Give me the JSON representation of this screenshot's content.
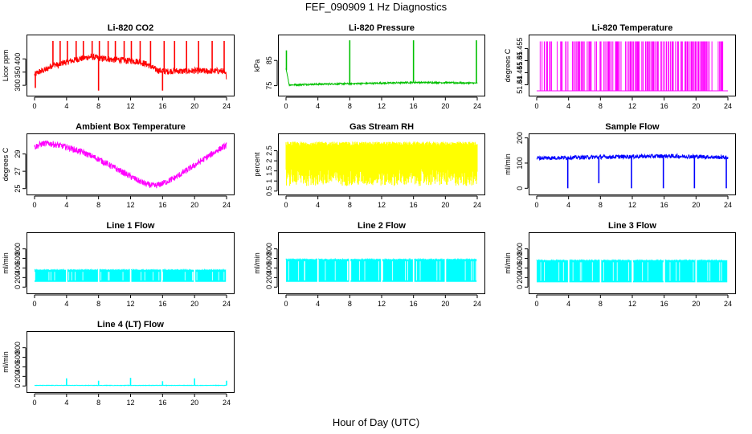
{
  "page": {
    "title": "FEF_090909  1 Hz Diagnostics",
    "xlabel": "Hour of Day (UTC)"
  },
  "chart_data": [
    {
      "type": "line",
      "title": "Li-820 CO2",
      "ylabel": "Licor ppm",
      "color": "#ff0000",
      "xlim": [
        0,
        24
      ],
      "ylim": [
        270,
        480
      ],
      "xticks": [
        0,
        4,
        8,
        12,
        16,
        20,
        24
      ],
      "yticks": [
        300,
        350,
        400
      ],
      "x": [
        0,
        0.5,
        1,
        1.5,
        2,
        2.5,
        3,
        3.5,
        4,
        4.5,
        5,
        5.5,
        6,
        6.5,
        7,
        7.5,
        8,
        8.5,
        9,
        9.5,
        10,
        10.5,
        11,
        11.5,
        12,
        12.5,
        13,
        13.5,
        14,
        14.5,
        15,
        15.5,
        16,
        16.5,
        17,
        17.5,
        18,
        18.5,
        19,
        19.5,
        20,
        20.5,
        21,
        21.5,
        22,
        22.5,
        23,
        23.5,
        24
      ],
      "y": [
        340,
        350,
        355,
        360,
        372,
        380,
        375,
        385,
        388,
        392,
        395,
        400,
        402,
        405,
        408,
        406,
        404,
        400,
        402,
        398,
        396,
        398,
        395,
        392,
        394,
        392,
        390,
        385,
        380,
        372,
        362,
        356,
        354,
        352,
        354,
        355,
        354,
        353,
        354,
        354,
        355,
        354,
        354,
        353,
        354,
        354,
        354,
        354,
        335
      ],
      "band": 12,
      "spikes": [
        {
          "x": 0.1,
          "y": 290
        },
        {
          "x": 2.3,
          "y": 468
        },
        {
          "x": 3.2,
          "y": 468
        },
        {
          "x": 4.1,
          "y": 468
        },
        {
          "x": 5.2,
          "y": 468
        },
        {
          "x": 6.1,
          "y": 468
        },
        {
          "x": 7.2,
          "y": 468
        },
        {
          "x": 8.0,
          "y": 280
        },
        {
          "x": 8.1,
          "y": 468
        },
        {
          "x": 9.2,
          "y": 468
        },
        {
          "x": 10.1,
          "y": 468
        },
        {
          "x": 11.2,
          "y": 468
        },
        {
          "x": 12.1,
          "y": 468
        },
        {
          "x": 13.2,
          "y": 468
        },
        {
          "x": 14.5,
          "y": 468
        },
        {
          "x": 16.0,
          "y": 280
        },
        {
          "x": 16.2,
          "y": 468
        },
        {
          "x": 17.5,
          "y": 468
        },
        {
          "x": 19.0,
          "y": 468
        },
        {
          "x": 20.5,
          "y": 468
        },
        {
          "x": 22.2,
          "y": 468
        },
        {
          "x": 23.7,
          "y": 468
        }
      ]
    },
    {
      "type": "line",
      "title": "Li-820 Pressure",
      "ylabel": "kPa",
      "color": "#00c000",
      "xlim": [
        0,
        24
      ],
      "ylim": [
        72,
        94
      ],
      "xticks": [
        0,
        4,
        8,
        12,
        16,
        20,
        24
      ],
      "yticks": [
        75,
        85
      ],
      "x": [
        0,
        0.4,
        4,
        8,
        12,
        16,
        20,
        24
      ],
      "y": [
        82,
        75.3,
        75.6,
        75.8,
        76.0,
        76.3,
        76.2,
        76.0
      ],
      "band": 0.3,
      "spikes": [
        {
          "x": 0.05,
          "y": 89
        },
        {
          "x": 8,
          "y": 93
        },
        {
          "x": 16,
          "y": 93
        },
        {
          "x": 23.9,
          "y": 93
        }
      ]
    },
    {
      "type": "binary",
      "title": "Li-820 Temperature",
      "ylabel": "degrees C",
      "color": "#ff00ff",
      "xlim": [
        0,
        24
      ],
      "ylim": [
        51.4365,
        51.4595
      ],
      "xticks": [
        0,
        4,
        8,
        12,
        16,
        20,
        24
      ],
      "yticks": [
        51.44,
        51.445,
        51.45,
        51.455
      ],
      "low": 51.4375,
      "high": 51.458,
      "density": [
        [
          0.3,
          0.15
        ],
        [
          3.0,
          0.2
        ],
        [
          6.0,
          0.2
        ],
        [
          9.0,
          0.3
        ],
        [
          12.0,
          0.45
        ],
        [
          15.0,
          0.55
        ],
        [
          17.0,
          0.6
        ],
        [
          20.0,
          0.4
        ],
        [
          23.4,
          0.2
        ]
      ]
    },
    {
      "type": "line",
      "title": "Ambient Box Temperature",
      "ylabel": "degrees C",
      "color": "#ff00ff",
      "xlim": [
        0,
        24
      ],
      "ylim": [
        24.6,
        31.0
      ],
      "xticks": [
        0,
        4,
        8,
        12,
        16,
        20,
        24
      ],
      "yticks": [
        25,
        27,
        29
      ],
      "x": [
        0,
        1,
        2,
        3,
        4,
        5,
        6,
        7,
        8,
        9,
        10,
        11,
        12,
        13,
        14,
        15,
        16,
        17,
        18,
        19,
        20,
        21,
        22,
        23,
        24
      ],
      "y": [
        29.8,
        30.2,
        30.2,
        30.0,
        29.8,
        29.5,
        29.2,
        28.8,
        28.4,
        27.9,
        27.4,
        26.9,
        26.4,
        25.9,
        25.5,
        25.3,
        25.6,
        26.0,
        26.5,
        27.1,
        27.7,
        28.3,
        28.9,
        29.5,
        30.0
      ],
      "band": 0.35
    },
    {
      "type": "noise",
      "title": "Gas Stream RH",
      "ylabel": "percent",
      "color": "#ffff00",
      "xlim": [
        0,
        24
      ],
      "ylim": [
        0.45,
        3.2
      ],
      "xticks": [
        0,
        4,
        8,
        12,
        16,
        20,
        24
      ],
      "yticks": [
        0.5,
        1.0,
        1.5,
        2.0,
        2.5
      ],
      "low": 0.75,
      "high": 2.95,
      "core_low": 1.6,
      "core_high": 2.75
    },
    {
      "type": "line",
      "title": "Sample Flow",
      "ylabel": "ml/min",
      "color": "#0000ff",
      "xlim": [
        0,
        24
      ],
      "ylim": [
        -15,
        205
      ],
      "xticks": [
        0,
        4,
        8,
        12,
        16,
        20,
        24
      ],
      "yticks": [
        0,
        100,
        200
      ],
      "x": [
        0,
        4,
        8,
        12,
        16,
        20,
        24
      ],
      "y": [
        120,
        122,
        124,
        126,
        128,
        126,
        122
      ],
      "band": 8,
      "spikes": [
        {
          "x": 3.9,
          "y": 0
        },
        {
          "x": 7.8,
          "y": 20
        },
        {
          "x": 11.9,
          "y": 0
        },
        {
          "x": 15.9,
          "y": 0
        },
        {
          "x": 19.8,
          "y": 0
        },
        {
          "x": 23.8,
          "y": 0
        }
      ]
    },
    {
      "type": "fill",
      "title": "Line 1 Flow",
      "ylabel": "ml/min",
      "color": "#00ffff",
      "xlim": [
        0,
        24
      ],
      "ylim": [
        -80,
        1080
      ],
      "xticks": [
        0,
        4,
        8,
        12,
        16,
        20,
        24
      ],
      "yticks": [
        0,
        200,
        400,
        600,
        800
      ],
      "low": 110,
      "high": 360,
      "gaps": [
        4,
        8,
        12,
        15.9,
        20,
        24
      ]
    },
    {
      "type": "fill",
      "title": "Line 2 Flow",
      "ylabel": "ml/min",
      "color": "#00ffff",
      "xlim": [
        0,
        24
      ],
      "ylim": [
        -80,
        1080
      ],
      "xticks": [
        0,
        4,
        8,
        12,
        16,
        20,
        24
      ],
      "yticks": [
        0,
        200,
        400,
        600,
        800
      ],
      "low": 110,
      "high": 580,
      "gaps": [
        4,
        8,
        12,
        16,
        20,
        24
      ]
    },
    {
      "type": "fill",
      "title": "Line 3 Flow",
      "ylabel": "ml/min",
      "color": "#00ffff",
      "xlim": [
        0,
        24
      ],
      "ylim": [
        -80,
        1080
      ],
      "xticks": [
        0,
        4,
        8,
        12,
        16,
        20,
        24
      ],
      "yticks": [
        0,
        200,
        400,
        600,
        800
      ],
      "low": 100,
      "high": 560,
      "gaps": [
        4,
        8,
        12,
        16,
        20,
        24
      ]
    },
    {
      "type": "line",
      "title": "Line 4 (LT) Flow",
      "ylabel": "ml/min",
      "color": "#00ffff",
      "xlim": [
        0,
        24
      ],
      "ylim": [
        -80,
        1080
      ],
      "xticks": [
        0,
        4,
        8,
        12,
        16,
        20,
        24
      ],
      "yticks": [
        0,
        200,
        400,
        600,
        800
      ],
      "x": [
        0,
        24
      ],
      "y": [
        12,
        12
      ],
      "band": 4,
      "spikes": [
        {
          "x": 4,
          "y": 160
        },
        {
          "x": 8,
          "y": 110
        },
        {
          "x": 12,
          "y": 170
        },
        {
          "x": 16,
          "y": 100
        },
        {
          "x": 20,
          "y": 160
        },
        {
          "x": 24,
          "y": 110
        }
      ]
    }
  ]
}
